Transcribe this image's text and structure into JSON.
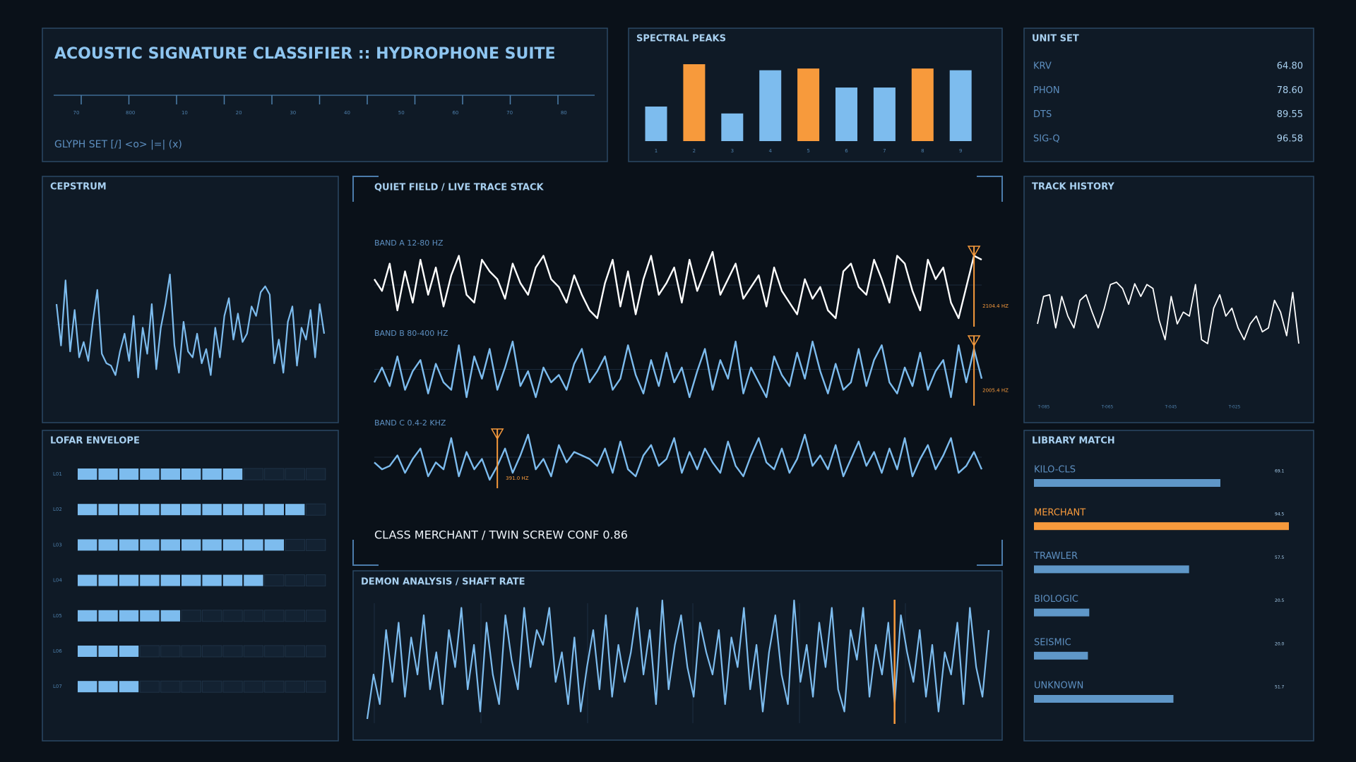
{
  "header": {
    "title": "ACOUSTIC SIGNATURE CLASSIFIER  ::  HYDROPHONE SUITE",
    "ruler_labels": [
      "70",
      "800",
      "10",
      "20",
      "30",
      "40",
      "50",
      "60",
      "70",
      "80"
    ],
    "glyph_set": "GLYPH SET  [/] <o> |=| (x)"
  },
  "spectral_peaks": {
    "type": "bar",
    "title": "SPECTRAL PEAKS",
    "categories": [
      "1",
      "2",
      "3",
      "4",
      "5",
      "6",
      "7",
      "8",
      "9"
    ],
    "values": [
      40,
      89,
      32,
      82,
      84,
      62,
      62,
      84,
      82
    ],
    "colors": [
      "#7dbcee",
      "#f79a3c",
      "#7dbcee",
      "#7dbcee",
      "#f79a3c",
      "#7dbcee",
      "#7dbcee",
      "#f79a3c",
      "#7dbcee"
    ]
  },
  "unit_set": {
    "title": "UNIT SET",
    "rows": [
      [
        "KRV",
        "64.80"
      ],
      [
        "PHON",
        "78.60"
      ],
      [
        "DTS",
        "89.55"
      ],
      [
        "SIG-Q",
        "96.58"
      ]
    ]
  },
  "cepstrum": {
    "type": "line",
    "title": "CEPSTRUM",
    "color": "#7dbcee",
    "values": [
      70,
      35,
      90,
      30,
      65,
      25,
      38,
      22,
      55,
      82,
      28,
      20,
      18,
      10,
      30,
      45,
      22,
      60,
      8,
      50,
      28,
      70,
      15,
      50,
      70,
      95,
      35,
      12,
      55,
      30,
      25,
      45,
      20,
      32,
      10,
      50,
      25,
      60,
      75,
      40,
      62,
      38,
      45,
      68,
      60,
      80,
      85,
      78,
      20,
      40,
      12,
      55,
      68,
      18,
      50,
      40,
      65,
      25,
      70,
      45
    ]
  },
  "live_trace": {
    "title": "QUIET FIELD / LIVE TRACE STACK",
    "bands": [
      {
        "label": "BAND A 12-80 HZ",
        "color": "#ffffff",
        "marker_index": 78,
        "marker_label": "2104.4 HZ",
        "values": [
          60,
          45,
          80,
          20,
          70,
          30,
          85,
          40,
          75,
          25,
          65,
          90,
          40,
          30,
          85,
          70,
          60,
          35,
          80,
          55,
          40,
          75,
          90,
          60,
          50,
          30,
          65,
          40,
          20,
          10,
          55,
          85,
          25,
          70,
          15,
          60,
          90,
          40,
          55,
          75,
          30,
          85,
          45,
          70,
          95,
          40,
          60,
          80,
          35,
          50,
          65,
          25,
          75,
          45,
          30,
          15,
          60,
          35,
          50,
          20,
          10,
          70,
          80,
          50,
          40,
          85,
          60,
          30,
          90,
          80,
          45,
          20,
          85,
          60,
          75,
          30,
          10,
          50,
          90,
          85
        ]
      },
      {
        "label": "BAND B 80-400 HZ",
        "color": "#7dbcee",
        "marker_index": 78,
        "marker_label": "2005.4 HZ",
        "values": [
          40,
          60,
          35,
          75,
          30,
          55,
          70,
          25,
          65,
          40,
          30,
          90,
          20,
          75,
          45,
          85,
          30,
          60,
          95,
          35,
          55,
          20,
          60,
          40,
          50,
          30,
          65,
          85,
          40,
          55,
          75,
          30,
          45,
          90,
          50,
          25,
          70,
          35,
          80,
          40,
          60,
          20,
          55,
          85,
          30,
          70,
          45,
          95,
          25,
          60,
          40,
          20,
          75,
          50,
          35,
          80,
          45,
          95,
          55,
          25,
          65,
          30,
          40,
          85,
          35,
          70,
          90,
          40,
          25,
          60,
          35,
          80,
          30,
          55,
          70,
          20,
          90,
          40,
          85,
          45
        ]
      },
      {
        "label": "BAND C 0.4-2 KHZ",
        "color": "#7dbcee",
        "marker_index": 16,
        "marker_label": "391.0 HZ",
        "values": [
          50,
          40,
          45,
          60,
          35,
          55,
          70,
          30,
          50,
          40,
          85,
          30,
          65,
          40,
          55,
          25,
          45,
          70,
          35,
          60,
          90,
          40,
          55,
          30,
          75,
          50,
          65,
          60,
          55,
          45,
          70,
          35,
          80,
          40,
          30,
          60,
          75,
          45,
          55,
          85,
          35,
          65,
          40,
          70,
          50,
          35,
          80,
          45,
          30,
          60,
          85,
          50,
          40,
          70,
          35,
          55,
          90,
          45,
          60,
          40,
          75,
          30,
          55,
          80,
          45,
          65,
          35,
          70,
          40,
          85,
          30,
          55,
          75,
          40,
          60,
          85,
          35,
          45,
          65,
          40
        ]
      }
    ],
    "classification": "CLASS  MERCHANT / TWIN SCREW  CONF 0.86"
  },
  "track_history": {
    "type": "line",
    "title": "TRACK HISTORY",
    "color": "#ffffff",
    "values": [
      35,
      70,
      72,
      30,
      70,
      45,
      30,
      65,
      72,
      50,
      30,
      55,
      85,
      88,
      80,
      60,
      86,
      70,
      85,
      80,
      40,
      15,
      70,
      35,
      50,
      45,
      85,
      15,
      10,
      55,
      72,
      45,
      55,
      30,
      15,
      35,
      45,
      25,
      30,
      65,
      50,
      20,
      75,
      10
    ],
    "x_labels": [
      "T-085",
      "T-065",
      "T-045",
      "T-025"
    ]
  },
  "lofar_envelope": {
    "title": "LOFAR ENVELOPE",
    "segments": 12,
    "rows": [
      {
        "label": "L01",
        "value": 8
      },
      {
        "label": "L02",
        "value": 11
      },
      {
        "label": "L03",
        "value": 10
      },
      {
        "label": "L04",
        "value": 9
      },
      {
        "label": "L05",
        "value": 5
      },
      {
        "label": "L06",
        "value": 3
      },
      {
        "label": "L07",
        "value": 3
      }
    ]
  },
  "demon": {
    "type": "line",
    "title": "DEMON ANALYSIS / SHAFT RATE",
    "color": "#7dbcee",
    "marker_index": 84,
    "values": [
      10,
      40,
      20,
      70,
      35,
      75,
      25,
      65,
      40,
      80,
      30,
      55,
      20,
      70,
      45,
      85,
      30,
      60,
      15,
      75,
      40,
      20,
      80,
      50,
      30,
      85,
      45,
      70,
      60,
      85,
      35,
      55,
      20,
      65,
      15,
      45,
      70,
      30,
      80,
      25,
      60,
      35,
      55,
      85,
      40,
      70,
      20,
      90,
      30,
      60,
      80,
      45,
      25,
      75,
      55,
      40,
      70,
      20,
      65,
      45,
      85,
      30,
      60,
      15,
      55,
      80,
      40,
      20,
      90,
      35,
      60,
      25,
      75,
      45,
      85,
      30,
      15,
      70,
      50,
      85,
      25,
      60,
      40,
      75,
      20,
      80,
      55,
      35,
      70,
      25,
      60,
      15,
      55,
      40,
      75,
      20,
      85,
      45,
      25,
      70
    ]
  },
  "library_match": {
    "title": "LIBRARY MATCH",
    "categories": [
      "KILO-CLS",
      "MERCHANT",
      "TRAWLER",
      "BIOLOGIC",
      "SEISMIC",
      "UNKNOWN"
    ],
    "values": [
      69.1,
      94.5,
      57.5,
      20.5,
      20.0,
      51.7
    ],
    "value_labels": [
      "69.1",
      "94.5",
      "57.5",
      "20.5",
      "20.0",
      "51.7"
    ],
    "colors": [
      "#5f97c8",
      "#f79a3c",
      "#5f97c8",
      "#5f97c8",
      "#5f97c8",
      "#5f97c8"
    ]
  }
}
